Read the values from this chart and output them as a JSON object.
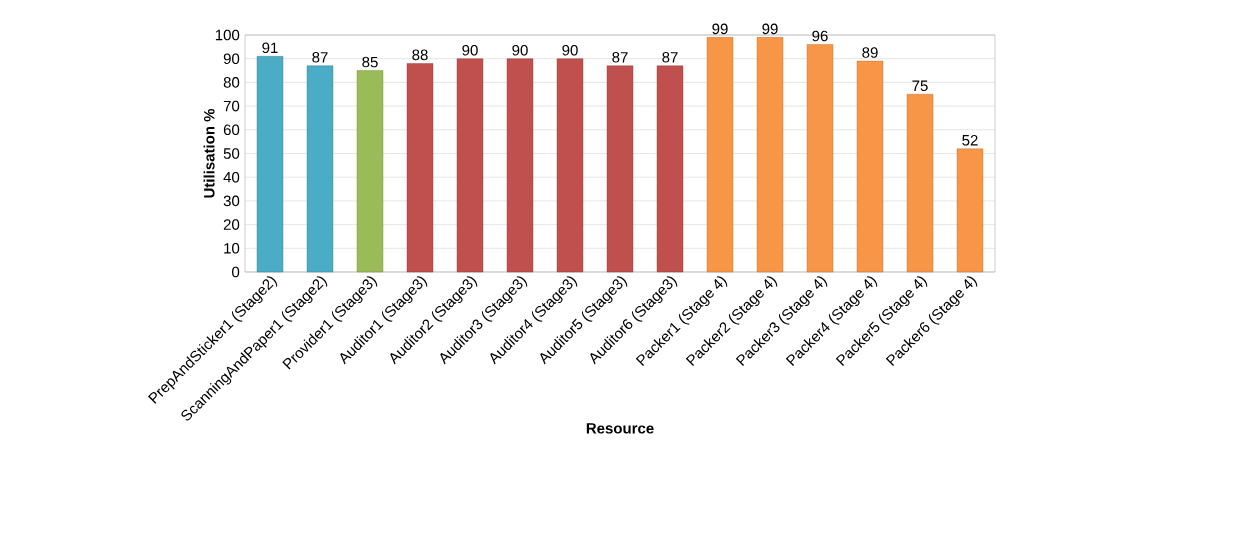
{
  "chart_data": {
    "type": "bar",
    "xlabel": "Resource",
    "ylabel": "Utilisation %",
    "categories": [
      "PrepAndSticker1 (Stage2)",
      "ScanningAndPaper1 (Stage2)",
      "Provider1 (Stage3)",
      "Auditor1 (Stage3)",
      "Auditor2 (Stage3)",
      "Auditor3 (Stage3)",
      "Auditor4 (Stage3)",
      "Auditor5 (Stage3)",
      "Auditor6 (Stage3)",
      "Packer1 (Stage 4)",
      "Packer2 (Stage 4)",
      "Packer3 (Stage 4)",
      "Packer4 (Stage 4)",
      "Packer5 (Stage 4)",
      "Packer6 (Stage 4)"
    ],
    "values": [
      91,
      87,
      85,
      88,
      90,
      90,
      90,
      87,
      87,
      99,
      99,
      96,
      89,
      75,
      52
    ],
    "colors": [
      "#4bacc6",
      "#4bacc6",
      "#9bbb59",
      "#c0504d",
      "#c0504d",
      "#c0504d",
      "#c0504d",
      "#c0504d",
      "#c0504d",
      "#f79646",
      "#f79646",
      "#f79646",
      "#f79646",
      "#f79646",
      "#f79646"
    ],
    "ylim": [
      0,
      100
    ],
    "yticks": [
      0,
      10,
      20,
      30,
      40,
      50,
      60,
      70,
      80,
      90,
      100
    ],
    "grid": "y",
    "data_labels": true
  }
}
